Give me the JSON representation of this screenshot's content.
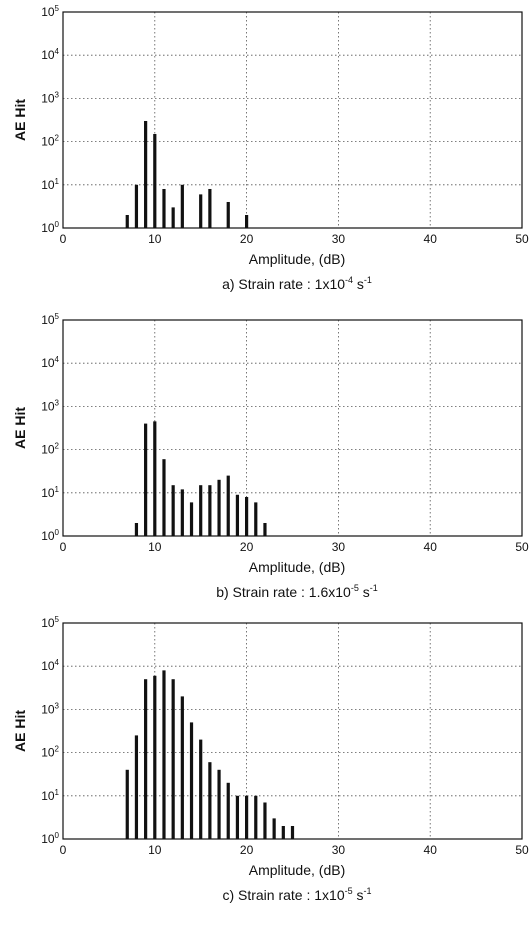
{
  "chart_data": [
    {
      "type": "bar",
      "caption_prefix": "a)  Strain rate : 1x10",
      "caption_exp": "-4",
      "caption_unit": " s",
      "caption_unit_exp": "-1",
      "xlabel": "Amplitude,  (dB)",
      "ylabel": "AE Hit",
      "y_scale": "log",
      "xlim": [
        0,
        50
      ],
      "ylim": [
        1,
        100000
      ],
      "x_ticks": [
        "0",
        "10",
        "20",
        "30",
        "40",
        "50"
      ],
      "y_tick_base": "10",
      "y_tick_exps": [
        "0",
        "1",
        "2",
        "3",
        "4",
        "5"
      ],
      "grid": true,
      "x": [
        7,
        8,
        9,
        10,
        11,
        12,
        13,
        15,
        16,
        18,
        20
      ],
      "values": [
        2,
        10,
        300,
        150,
        8,
        3,
        10,
        6,
        8,
        4,
        2
      ]
    },
    {
      "type": "bar",
      "caption_prefix": "b)  Strain rate : 1.6x10",
      "caption_exp": "-5",
      "caption_unit": " s",
      "caption_unit_exp": "-1",
      "xlabel": "Amplitude,  (dB)",
      "ylabel": "AE Hit",
      "y_scale": "log",
      "xlim": [
        0,
        50
      ],
      "ylim": [
        1,
        100000
      ],
      "x_ticks": [
        "0",
        "10",
        "20",
        "30",
        "40",
        "50"
      ],
      "y_tick_base": "10",
      "y_tick_exps": [
        "0",
        "1",
        "2",
        "3",
        "4",
        "5"
      ],
      "grid": true,
      "x": [
        8,
        9,
        10,
        11,
        12,
        13,
        14,
        15,
        16,
        17,
        18,
        19,
        20,
        21,
        22
      ],
      "values": [
        2,
        400,
        450,
        60,
        15,
        12,
        6,
        15,
        15,
        20,
        25,
        9,
        8,
        6,
        2
      ]
    },
    {
      "type": "bar",
      "caption_prefix": "c)  Strain rate : 1x10",
      "caption_exp": "-5",
      "caption_unit": " s",
      "caption_unit_exp": "-1",
      "xlabel": "Amplitude,  (dB)",
      "ylabel": "AE Hit",
      "y_scale": "log",
      "xlim": [
        0,
        50
      ],
      "ylim": [
        1,
        100000
      ],
      "x_ticks": [
        "0",
        "10",
        "20",
        "30",
        "40",
        "50"
      ],
      "y_tick_base": "10",
      "y_tick_exps": [
        "0",
        "1",
        "2",
        "3",
        "4",
        "5"
      ],
      "grid": true,
      "x": [
        7,
        8,
        9,
        10,
        11,
        12,
        13,
        14,
        15,
        16,
        17,
        18,
        19,
        20,
        21,
        22,
        23,
        24,
        25
      ],
      "values": [
        40,
        250,
        5000,
        6000,
        8000,
        5000,
        2000,
        500,
        200,
        60,
        40,
        20,
        10,
        10,
        10,
        7,
        3,
        2,
        2
      ]
    }
  ]
}
